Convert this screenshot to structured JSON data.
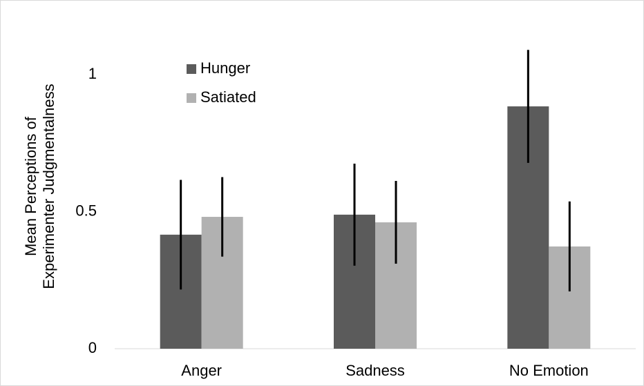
{
  "chart_data": {
    "type": "bar",
    "ylabel": [
      "Mean Perceptions of",
      "Experimenter Judgmentalness"
    ],
    "categories": [
      "Anger",
      "Sadness",
      "No Emotion"
    ],
    "series": [
      {
        "name": "Hunger",
        "color": "#5b5b5b",
        "values": [
          0.416,
          0.489,
          0.884
        ],
        "errors": [
          0.2,
          0.186,
          0.206
        ]
      },
      {
        "name": "Satiated",
        "color": "#b1b1b1",
        "values": [
          0.481,
          0.461,
          0.373
        ],
        "errors": [
          0.145,
          0.151,
          0.164
        ]
      }
    ],
    "ylim": [
      0,
      1.2
    ],
    "yticks": [
      0,
      0.5,
      1
    ],
    "grid": false,
    "legend": "upper left"
  }
}
